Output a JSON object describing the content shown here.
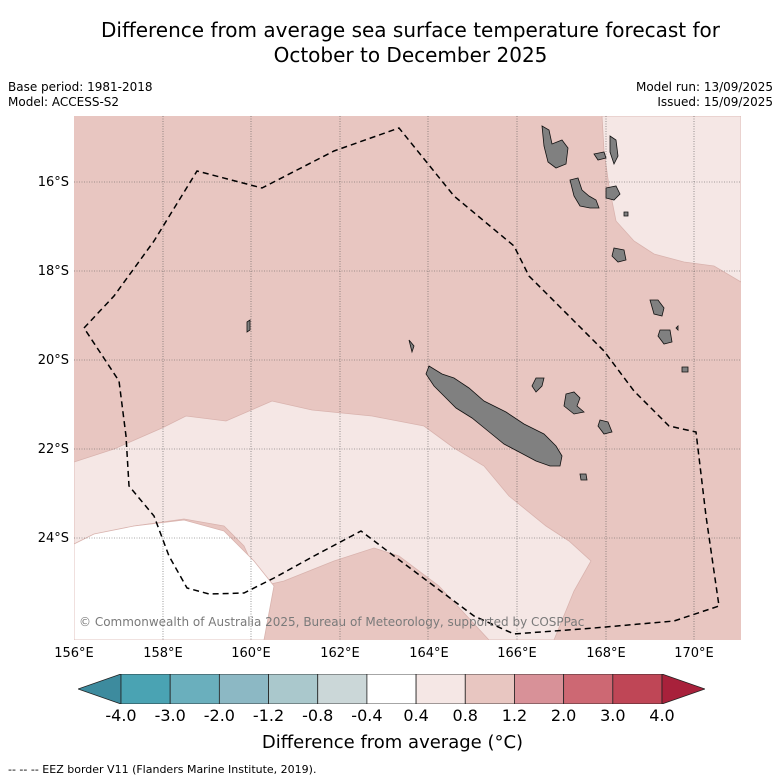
{
  "title_line1": "Difference from average sea surface temperature forecast for",
  "title_line2": "October to December 2025",
  "base_period": "Base period: 1981-2018",
  "model": "Model: ACCESS-S2",
  "model_run": "Model run: 13/09/2025",
  "issued": "Issued: 15/09/2025",
  "copyright": "© Commonwealth of Australia 2025, Bureau of Meteorology, supported by COSPPac",
  "lat_labels": [
    "16°S",
    "18°S",
    "20°S",
    "22°S",
    "24°S"
  ],
  "lon_labels": [
    "156°E",
    "158°E",
    "160°E",
    "162°E",
    "164°E",
    "166°E",
    "168°E",
    "170°E"
  ],
  "colorbar": {
    "title": "Difference from average (°C)",
    "tick_labels": [
      "-4.0",
      "-3.0",
      "-2.0",
      "-1.2",
      "-0.8",
      "-0.4",
      "0.4",
      "0.8",
      "1.2",
      "2.0",
      "3.0",
      "4.0"
    ],
    "colors": [
      "#3d8b9e",
      "#4aa3b3",
      "#6aafbd",
      "#8cb8c4",
      "#aac8cc",
      "#cbd7d8",
      "#ffffff",
      "#f5e7e5",
      "#e8c6c1",
      "#d89198",
      "#cd6873",
      "#bf4656",
      "#a8213b"
    ]
  },
  "footnote": "--  --  -- EEZ border V11 (Flanders Marine Institute, 2019).",
  "legend_colors": {
    "light_anomaly": "#f5e7e5",
    "moderate_anomaly": "#e8c6c1",
    "neutral": "#ffffff",
    "land": "#808080"
  }
}
